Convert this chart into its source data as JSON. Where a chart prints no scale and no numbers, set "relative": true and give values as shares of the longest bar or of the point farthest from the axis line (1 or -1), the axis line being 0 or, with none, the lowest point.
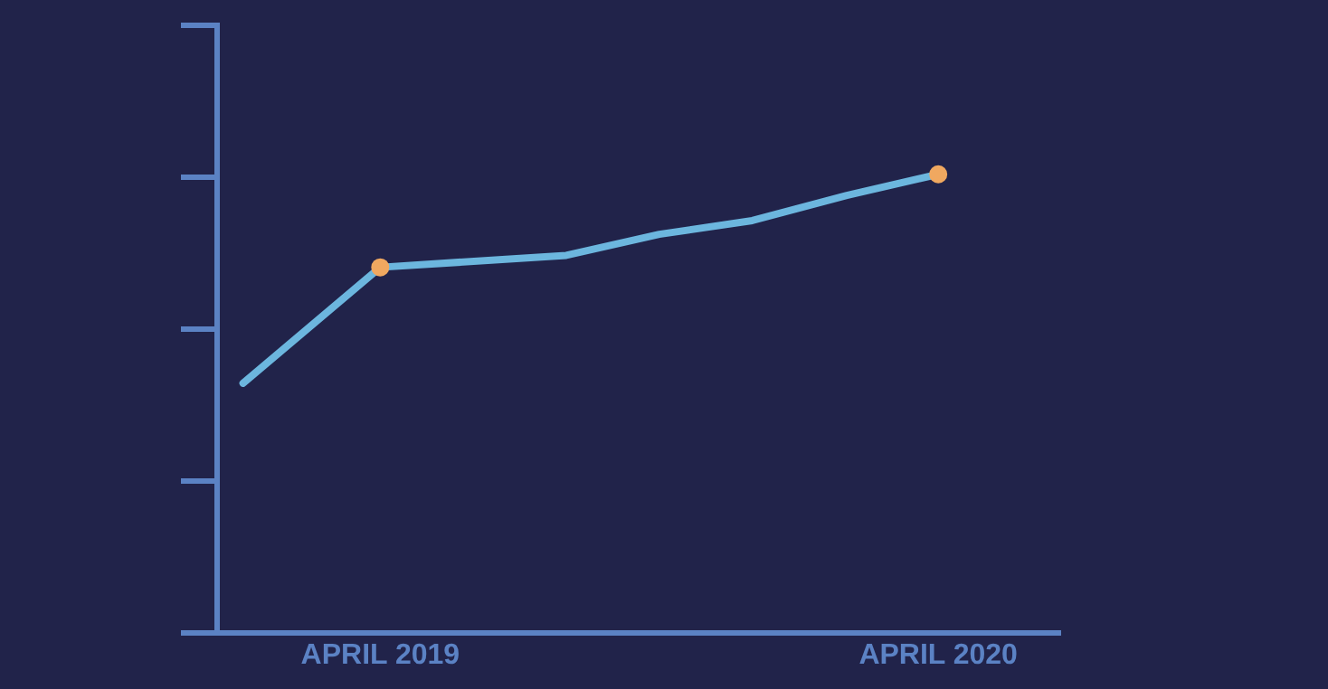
{
  "chart_data": {
    "type": "line",
    "relative": true,
    "x": [
      "2019-01",
      "2019-04",
      "2019-08",
      "2019-10",
      "2019-12",
      "2020-02",
      "2020-04"
    ],
    "xlim": [
      "2018-12-15",
      "2020-06-20"
    ],
    "xticks": [
      {
        "value": "2019-04",
        "label": "APRIL 2019"
      },
      {
        "value": "2020-04",
        "label": "APRIL 2020"
      }
    ],
    "series": [
      {
        "color": "#6cb6de",
        "marker": "none",
        "values": [
          0.544,
          0.797,
          0.823,
          0.869,
          0.899,
          0.954,
          1
        ]
      },
      {
        "type": "scatter",
        "color": "#f0a860",
        "marker": "circle",
        "x": [
          "2019-04",
          "2020-04"
        ],
        "values": [
          0.797,
          1
        ]
      }
    ],
    "grid": false,
    "legend": false
  }
}
